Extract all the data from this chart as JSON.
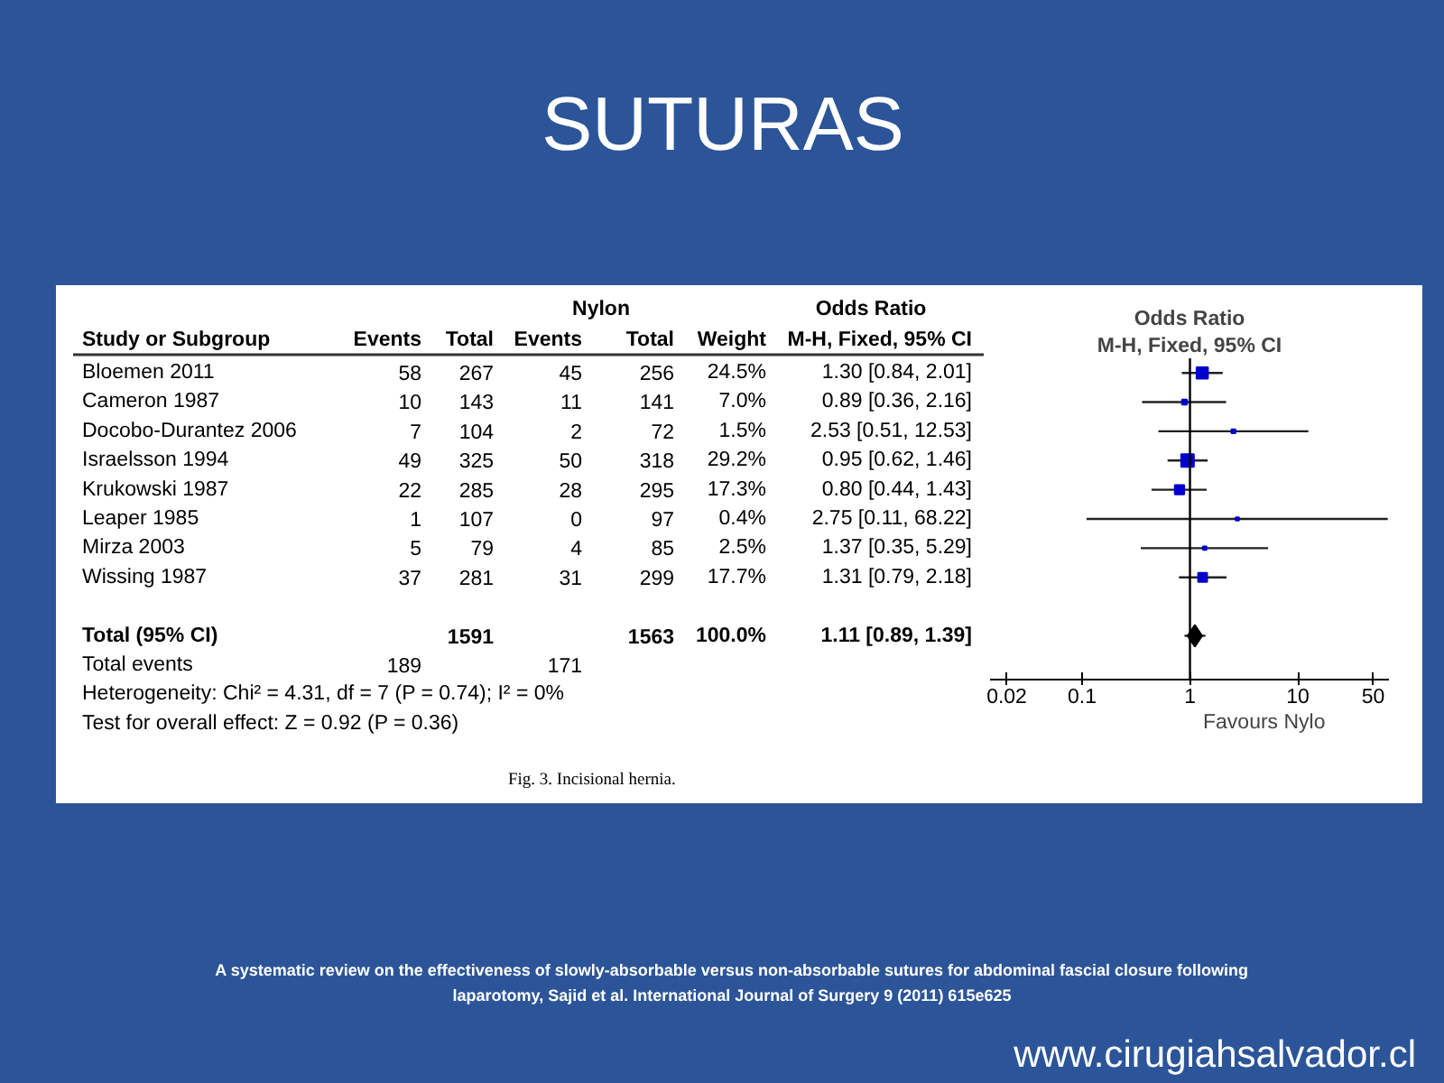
{
  "chart_data": [
    {
      "type": "other",
      "title": "SUTURAS",
      "data_labels": true,
      "categories": [
        "Bloemen 2011",
        "Cameron 1987",
        "Docobo-Durantez 2006",
        "Israelsson 1994",
        "Krukowski 1987",
        "Leaper 1985",
        "Mirza 2003",
        "Wissing 1987",
        null,
        "Total (95% CI)",
        "Total events"
      ],
      "series": [
        {
          "name": "Events",
          "type": "other",
          "values": [
            58,
            10,
            7,
            49,
            22,
            1,
            5,
            37,
            null,
            null,
            189
          ]
        },
        {
          "name": "Total",
          "type": "other",
          "values": [
            267,
            143,
            104,
            325,
            285,
            107,
            79,
            281,
            null,
            1591,
            null
          ]
        },
        {
          "name": "Events",
          "type": "other",
          "values": [
            45,
            11,
            2,
            50,
            28,
            0,
            4,
            31,
            null,
            null,
            171
          ]
        },
        {
          "name": "Total",
          "type": "other",
          "values": [
            256,
            141,
            72,
            318,
            295,
            97,
            85,
            299,
            null,
            1563,
            null
          ]
        },
        {
          "name": "Weight",
          "type": "other",
          "values": [
            24.5,
            7.0,
            1.5,
            29.2,
            17.3,
            0.4,
            2.5,
            17.7,
            null,
            100.0,
            null
          ],
          "value_labels": [
            "24.5%",
            "7.0%",
            "1.5%",
            "29.2%",
            "17.3%",
            "0.4%",
            "2.5%",
            "17.7%",
            null,
            "100.0%",
            null
          ]
        },
        {
          "name": "M-H, Fixed, 95% CI",
          "type": "other",
          "values": [
            1.3,
            0.89,
            2.53,
            0.95,
            0.8,
            2.75,
            1.37,
            1.31,
            null,
            1.11,
            null
          ],
          "value_labels": [
            "1.30 [0.84, 2.01]",
            "0.89 [0.36, 2.16]",
            "2.53 [0.51, 12.53]",
            "0.95 [0.62, 1.46]",
            "0.80 [0.44, 1.43]",
            "2.75 [0.11, 68.22]",
            "1.37 [0.35, 5.29]",
            "1.31 [0.79, 2.18]",
            null,
            "1.11 [0.89, 1.39]",
            null
          ]
        }
      ],
      "annotations": [
        "Study or Subgroup",
        "Nylon",
        "Odds Ratio",
        "Heterogeneity: Chi² = 4.31, df = 7 (P = 0.74); I² = 0%",
        "Test for overall effect: Z = 0.92 (P = 0.36)",
        "Fig. 3. Incisional hernia.",
        "A systematic review on the effectiveness of slowly-absorbable versus non-absorbable sutures for abdominal fascial closure following laparotomy, Sajid et al. International Journal of Surgery 9 (2011) 615e625",
        "www.cirugiahsalvador.cl"
      ]
    },
    {
      "type": "bubble",
      "orientation": "horizontal",
      "log": "x",
      "categories": [
        null,
        null,
        null,
        null,
        null,
        null,
        null,
        null,
        null,
        null,
        null
      ],
      "series": [
        {
          "type": "bubble",
          "marker": "square",
          "color": "#0000cc",
          "values": [
            1.3,
            0.89,
            2.53,
            0.95,
            0.8,
            2.75,
            1.37,
            1.31,
            null,
            null,
            null
          ],
          "errors": [
            [
              0.84,
              2.01
            ],
            [
              0.36,
              2.16
            ],
            [
              0.51,
              12.53
            ],
            [
              0.62,
              1.46
            ],
            [
              0.44,
              1.43
            ],
            [
              0.11,
              68.22
            ],
            [
              0.35,
              5.29
            ],
            [
              0.79,
              2.18
            ],
            null,
            null,
            null
          ],
          "sizes": [
            0.8,
            0.15,
            0.1,
            1,
            0.55,
            0.07,
            0.08,
            0.5,
            null,
            null,
            null
          ]
        },
        {
          "type": "scatter",
          "marker": "diamond",
          "color": "#000000",
          "values": [
            null,
            null,
            null,
            null,
            null,
            null,
            null,
            null,
            null,
            1.11,
            null
          ],
          "errors": [
            null,
            null,
            null,
            null,
            null,
            null,
            null,
            null,
            null,
            [
              0.89,
              1.39
            ],
            null
          ]
        }
      ],
      "xlim": [
        0.014,
        70
      ],
      "xticks": [
        0.02,
        0.1,
        1,
        10,
        50
      ],
      "ref_lines": [
        {
          "axis": "x",
          "value": 1
        }
      ],
      "annotations": [
        "Odds Ratio",
        "M-H, Fixed, 95% CI",
        "Favours Nylo"
      ]
    }
  ]
}
